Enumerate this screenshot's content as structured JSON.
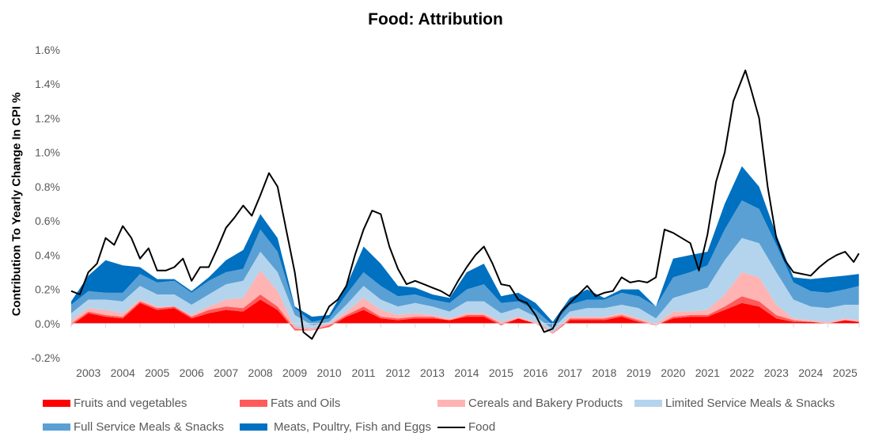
{
  "chart_data": {
    "type": "area",
    "title": "Food: Attribution",
    "xlabel": "",
    "ylabel": "Contribution To Yearly Change In CPI %",
    "ylim": [
      -0.2,
      1.6
    ],
    "xlim": [
      2003,
      2026
    ],
    "yticks": [
      "-0.2%",
      "0.0%",
      "0.2%",
      "0.4%",
      "0.6%",
      "0.8%",
      "1.0%",
      "1.2%",
      "1.4%",
      "1.6%"
    ],
    "ytick_values": [
      -0.2,
      0,
      0.2,
      0.4,
      0.6,
      0.8,
      1.0,
      1.2,
      1.4,
      1.6
    ],
    "xticks": [
      "2003",
      "2004",
      "2005",
      "2006",
      "2007",
      "2008",
      "2009",
      "2010",
      "2011",
      "2012",
      "2013",
      "2014",
      "2015",
      "2016",
      "2017",
      "2018",
      "2019",
      "2020",
      "2021",
      "2022",
      "2023",
      "2024",
      "2025"
    ],
    "grid": false,
    "legend_position": "bottom",
    "stack_x": [
      2003,
      2003.5,
      2004,
      2004.5,
      2005,
      2005.5,
      2006,
      2006.5,
      2007,
      2007.5,
      2008,
      2008.5,
      2009,
      2009.5,
      2010,
      2010.5,
      2011,
      2011.5,
      2012,
      2012.5,
      2013,
      2013.5,
      2014,
      2014.5,
      2015,
      2015.5,
      2016,
      2016.5,
      2017,
      2017.5,
      2018,
      2018.5,
      2019,
      2019.5,
      2020,
      2020.5,
      2021,
      2021.5,
      2022,
      2022.5,
      2023,
      2023.5,
      2024,
      2024.5,
      2025,
      2025.5,
      2025.9
    ],
    "series": [
      {
        "name": "Fruits and vegetables",
        "color": "#ff0000",
        "values": [
          -0.01,
          0.06,
          0.04,
          0.03,
          0.12,
          0.08,
          0.09,
          0.03,
          0.06,
          0.08,
          0.07,
          0.14,
          0.08,
          -0.04,
          -0.04,
          -0.02,
          0.04,
          0.08,
          0.03,
          0.02,
          0.03,
          0.03,
          0.02,
          0.04,
          0.04,
          -0.01,
          0.03,
          0.0,
          -0.06,
          0.02,
          0.02,
          0.02,
          0.04,
          0.01,
          -0.01,
          0.03,
          0.04,
          0.04,
          0.08,
          0.12,
          0.1,
          0.03,
          0.01,
          0.01,
          0.0,
          0.02,
          0.01
        ]
      },
      {
        "name": "Fats and Oils",
        "color": "#ff5b5b",
        "values": [
          0.01,
          0.01,
          0.01,
          0.01,
          0.01,
          0.01,
          0.01,
          0.01,
          0.02,
          0.02,
          0.02,
          0.03,
          0.02,
          0.01,
          0.0,
          0.01,
          0.01,
          0.02,
          0.01,
          0.01,
          0.01,
          0.01,
          0.0,
          0.01,
          0.01,
          0.01,
          0.0,
          0.0,
          0.0,
          0.01,
          0.01,
          0.01,
          0.01,
          0.01,
          0.0,
          0.01,
          0.01,
          0.01,
          0.02,
          0.04,
          0.03,
          0.02,
          0.01,
          0.0,
          0.0,
          0.0,
          0.0
        ]
      },
      {
        "name": "Cereals and Bakery Products",
        "color": "#ffb3b3",
        "values": [
          0.02,
          0.02,
          0.03,
          0.02,
          0.01,
          0.01,
          0.0,
          0.01,
          0.02,
          0.04,
          0.06,
          0.14,
          0.09,
          0.01,
          0.01,
          0.01,
          0.02,
          0.05,
          0.04,
          0.02,
          0.02,
          0.01,
          0.01,
          0.01,
          0.01,
          0.01,
          0.01,
          0.01,
          0.01,
          0.01,
          0.01,
          0.01,
          0.01,
          0.01,
          0.01,
          0.03,
          0.02,
          0.03,
          0.07,
          0.14,
          0.14,
          0.06,
          0.01,
          0.01,
          0.01,
          0.01,
          0.01
        ]
      },
      {
        "name": "Limited Service Meals & Snacks",
        "color": "#b4d4ed",
        "values": [
          0.04,
          0.05,
          0.06,
          0.07,
          0.08,
          0.07,
          0.07,
          0.06,
          0.07,
          0.09,
          0.1,
          0.11,
          0.11,
          0.07,
          0.02,
          0.01,
          0.04,
          0.07,
          0.06,
          0.05,
          0.06,
          0.05,
          0.04,
          0.07,
          0.07,
          0.05,
          0.05,
          0.03,
          0.02,
          0.03,
          0.05,
          0.05,
          0.05,
          0.06,
          0.03,
          0.08,
          0.11,
          0.13,
          0.2,
          0.2,
          0.2,
          0.19,
          0.11,
          0.08,
          0.08,
          0.08,
          0.09
        ]
      },
      {
        "name": "Full Service Meals & Snacks",
        "color": "#5aa0d4",
        "values": [
          0.05,
          0.05,
          0.04,
          0.05,
          0.07,
          0.07,
          0.08,
          0.07,
          0.08,
          0.07,
          0.07,
          0.13,
          0.12,
          0.04,
          0.02,
          0.02,
          0.06,
          0.08,
          0.08,
          0.06,
          0.05,
          0.04,
          0.05,
          0.07,
          0.1,
          0.06,
          0.04,
          0.04,
          0.02,
          0.04,
          0.05,
          0.05,
          0.07,
          0.07,
          0.07,
          0.12,
          0.12,
          0.13,
          0.18,
          0.22,
          0.2,
          0.16,
          0.1,
          0.09,
          0.09,
          0.09,
          0.11
        ]
      },
      {
        "name": "Meats, Poultry, Fish and Eggs",
        "color": "#0070c0",
        "values": [
          0.02,
          0.09,
          0.19,
          0.16,
          0.04,
          0.02,
          0.01,
          0.01,
          0.02,
          0.07,
          0.11,
          0.09,
          0.08,
          0.01,
          0.03,
          0.02,
          0.05,
          0.15,
          0.13,
          0.06,
          0.04,
          0.03,
          0.03,
          0.1,
          0.12,
          0.04,
          0.05,
          0.04,
          0.02,
          0.04,
          0.06,
          0.01,
          0.02,
          0.04,
          0.0,
          0.11,
          0.1,
          0.08,
          0.15,
          0.2,
          0.13,
          0.06,
          0.03,
          0.07,
          0.09,
          0.08,
          0.07
        ]
      }
    ],
    "line": {
      "name": "Food",
      "color": "#000000",
      "x": [
        2003,
        2003.25,
        2003.5,
        2003.75,
        2004,
        2004.25,
        2004.5,
        2004.75,
        2005,
        2005.25,
        2005.5,
        2005.75,
        2006,
        2006.25,
        2006.5,
        2006.75,
        2007,
        2007.25,
        2007.5,
        2007.75,
        2008,
        2008.25,
        2008.5,
        2008.75,
        2009,
        2009.25,
        2009.5,
        2009.75,
        2010,
        2010.25,
        2010.5,
        2010.75,
        2011,
        2011.25,
        2011.5,
        2011.75,
        2012,
        2012.25,
        2012.5,
        2012.75,
        2013,
        2013.25,
        2013.5,
        2013.75,
        2014,
        2014.25,
        2014.5,
        2014.75,
        2015,
        2015.25,
        2015.5,
        2015.75,
        2016,
        2016.25,
        2016.5,
        2016.75,
        2017,
        2017.25,
        2017.5,
        2017.75,
        2018,
        2018.25,
        2018.5,
        2018.75,
        2019,
        2019.25,
        2019.5,
        2019.75,
        2020,
        2020.25,
        2020.5,
        2020.75,
        2021,
        2021.25,
        2021.5,
        2021.75,
        2022,
        2022.25,
        2022.6,
        2022.75,
        2023,
        2023.25,
        2023.5,
        2023.75,
        2024,
        2024.25,
        2024.5,
        2024.75,
        2025,
        2025.25,
        2025.5,
        2025.75,
        2025.9
      ],
      "values": [
        0.19,
        0.17,
        0.3,
        0.35,
        0.5,
        0.46,
        0.57,
        0.5,
        0.38,
        0.44,
        0.31,
        0.31,
        0.33,
        0.38,
        0.25,
        0.33,
        0.33,
        0.44,
        0.56,
        0.62,
        0.69,
        0.63,
        0.75,
        0.88,
        0.8,
        0.55,
        0.3,
        -0.05,
        -0.09,
        0.0,
        0.1,
        0.14,
        0.22,
        0.4,
        0.55,
        0.66,
        0.64,
        0.45,
        0.32,
        0.23,
        0.25,
        0.23,
        0.21,
        0.19,
        0.16,
        0.25,
        0.33,
        0.4,
        0.45,
        0.35,
        0.23,
        0.22,
        0.14,
        0.12,
        0.05,
        -0.05,
        -0.03,
        0.07,
        0.12,
        0.17,
        0.22,
        0.16,
        0.18,
        0.19,
        0.27,
        0.24,
        0.25,
        0.24,
        0.27,
        0.55,
        0.53,
        0.5,
        0.47,
        0.31,
        0.52,
        0.83,
        1.0,
        1.3,
        1.48,
        1.38,
        1.2,
        0.8,
        0.5,
        0.37,
        0.3,
        0.29,
        0.28,
        0.33,
        0.37,
        0.4,
        0.42,
        0.36,
        0.41
      ]
    }
  }
}
